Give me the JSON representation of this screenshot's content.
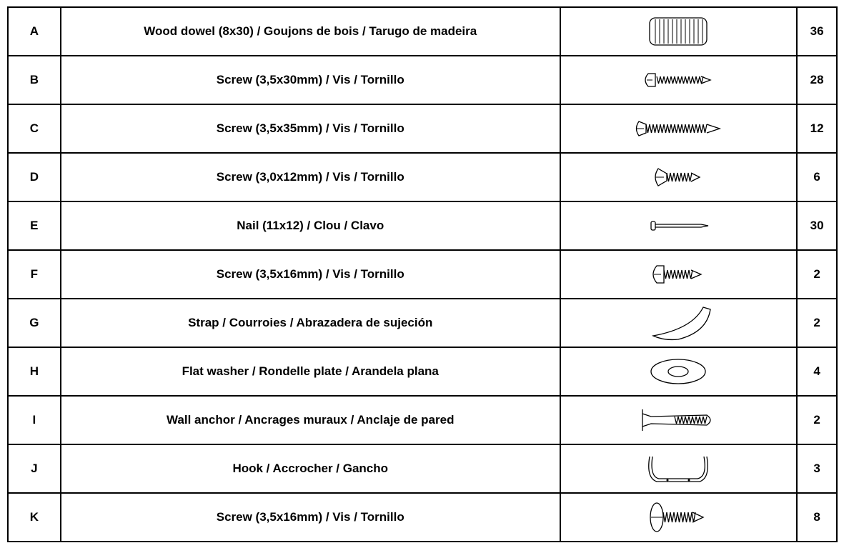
{
  "table": {
    "rows": [
      [
        "A",
        "Wood dowel (8x30) / Goujons de bois / Tarugo de madeira",
        36
      ],
      [
        "B",
        "Screw (3,5x30mm) / Vis / Tornillo",
        28
      ],
      [
        "C",
        "Screw (3,5x35mm) / Vis / Tornillo",
        12
      ],
      [
        "D",
        "Screw (3,0x12mm) / Vis / Tornillo",
        6
      ],
      [
        "E",
        "Nail (11x12) / Clou / Clavo",
        30
      ],
      [
        "F",
        "Screw (3,5x16mm) / Vis / Tornillo",
        2
      ],
      [
        "G",
        "Strap / Courroies / Abrazadera de sujeción",
        2
      ],
      [
        "H",
        "Flat washer / Rondelle plate / Arandela plana",
        4
      ],
      [
        "I",
        "Wall anchor / Ancrages muraux / Anclaje de pared",
        2
      ],
      [
        "J",
        "Hook / Accrocher / Gancho",
        3
      ],
      [
        "K",
        "Screw (3,5x16mm) / Vis / Tornillo",
        8
      ]
    ]
  }
}
